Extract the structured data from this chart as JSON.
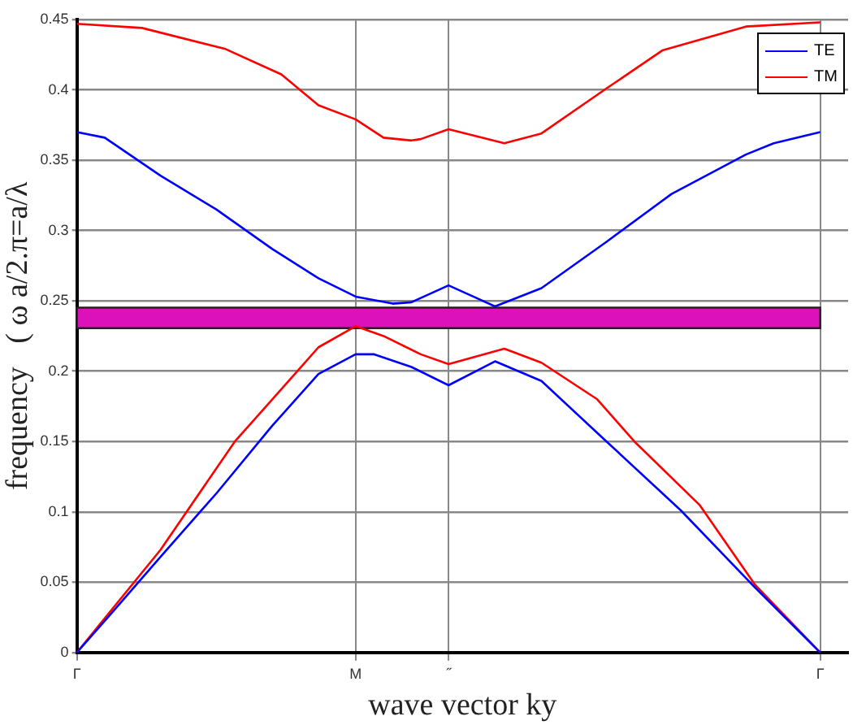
{
  "chart_data": {
    "type": "line",
    "xlabel": "wave vector ky",
    "ylabel": "frequency   ( ω a/2.π=a/λ",
    "categories": [
      "Γ",
      null,
      null,
      null,
      null,
      null,
      null,
      null,
      null,
      null,
      null,
      null,
      null,
      null,
      null,
      null,
      null,
      null,
      null,
      null,
      null,
      null,
      null,
      null,
      null,
      null,
      null,
      null,
      null,
      null,
      "M",
      null,
      null,
      null,
      null,
      null,
      null,
      null,
      null,
      null,
      "˝",
      null,
      null,
      null,
      null,
      null,
      null,
      null,
      null,
      null,
      null,
      null,
      null,
      null,
      null,
      null,
      null,
      null,
      null,
      null,
      null,
      null,
      null,
      null,
      null,
      null,
      null,
      null,
      null,
      null,
      null,
      null,
      null,
      null,
      null,
      null,
      null,
      null,
      null,
      null,
      "Γ",
      null,
      null,
      null
    ],
    "ylim": [
      0,
      0.45
    ],
    "yticks": [
      0,
      0.05,
      0.1,
      0.15,
      0.2,
      0.25,
      0.3,
      0.35,
      0.4,
      0.45
    ],
    "grid": true,
    "legend": "top right",
    "marker": "none",
    "line_style": "solid",
    "bands": [
      {
        "axis": "y",
        "from": 0.2306,
        "to": 0.2452,
        "color": "#dd11bb"
      }
    ],
    "series": [
      {
        "name": "TE",
        "color": "#0000ff",
        "values": [
          0.37,
          null,
          null,
          0.366,
          null,
          null,
          null,
          null,
          null,
          0.339,
          null,
          null,
          null,
          null,
          null,
          0.315,
          null,
          null,
          null,
          null,
          null,
          0.287,
          null,
          null,
          null,
          null,
          0.266,
          null,
          null,
          null,
          0.253,
          null,
          null,
          null,
          0.248,
          null,
          0.249,
          null,
          null,
          null,
          0.261,
          null,
          null,
          0.252,
          null,
          0.246,
          null,
          null,
          null,
          null,
          0.259,
          null,
          null,
          null,
          null,
          null,
          null,
          0.292,
          null,
          null,
          null,
          null,
          null,
          null,
          0.326,
          null,
          null,
          null,
          null,
          null,
          null,
          null,
          0.354,
          null,
          null,
          0.362,
          null,
          null,
          null,
          null,
          0.37,
          null,
          null,
          null
        ]
      },
      {
        "name": "TM",
        "color": "#ff0000",
        "values": [
          0.447,
          null,
          null,
          null,
          null,
          null,
          null,
          0.444,
          null,
          null,
          null,
          null,
          null,
          null,
          null,
          null,
          0.429,
          null,
          null,
          null,
          null,
          null,
          0.411,
          null,
          null,
          null,
          0.389,
          null,
          null,
          null,
          0.379,
          null,
          null,
          0.366,
          null,
          null,
          0.364,
          0.365,
          null,
          null,
          0.372,
          null,
          null,
          null,
          null,
          null,
          0.362,
          null,
          null,
          null,
          0.369,
          null,
          null,
          null,
          null,
          null,
          null,
          0.401,
          null,
          null,
          null,
          null,
          null,
          0.428,
          null,
          null,
          null,
          null,
          null,
          null,
          null,
          null,
          0.445,
          null,
          null,
          null,
          null,
          null,
          null,
          null,
          0.448,
          null,
          null,
          null
        ]
      },
      {
        "color": "#0000ff",
        "values": [
          0,
          null,
          null,
          null,
          0.03,
          null,
          null,
          null,
          null,
          0.068,
          null,
          null,
          null,
          null,
          null,
          0.113,
          null,
          null,
          null,
          null,
          null,
          0.161,
          null,
          null,
          null,
          null,
          0.198,
          null,
          null,
          null,
          0.212,
          null,
          0.212,
          null,
          null,
          null,
          0.203,
          null,
          null,
          null,
          0.19,
          null,
          null,
          null,
          null,
          0.207,
          null,
          null,
          null,
          null,
          0.193,
          null,
          null,
          null,
          null,
          null,
          null,
          0.15,
          null,
          null,
          null,
          null,
          null,
          null,
          null,
          0.101,
          null,
          null,
          null,
          null,
          null,
          null,
          null,
          0.046,
          null,
          null,
          null,
          null,
          null,
          null,
          0,
          null,
          null,
          null
        ]
      },
      {
        "color": "#ff0000",
        "values": [
          0,
          null,
          null,
          null,
          null,
          null,
          null,
          null,
          null,
          0.073,
          null,
          null,
          null,
          null,
          null,
          null,
          null,
          0.15,
          null,
          null,
          null,
          null,
          null,
          null,
          0.202,
          null,
          0.217,
          null,
          null,
          null,
          0.232,
          null,
          null,
          0.225,
          null,
          null,
          null,
          0.212,
          null,
          null,
          0.205,
          null,
          null,
          null,
          null,
          null,
          0.216,
          null,
          null,
          null,
          0.206,
          null,
          null,
          null,
          null,
          null,
          0.18,
          null,
          null,
          null,
          0.15,
          null,
          null,
          null,
          null,
          null,
          null,
          0.105,
          null,
          null,
          null,
          null,
          null,
          0.048,
          null,
          null,
          null,
          null,
          null,
          null,
          0,
          null,
          null,
          null
        ]
      }
    ]
  }
}
